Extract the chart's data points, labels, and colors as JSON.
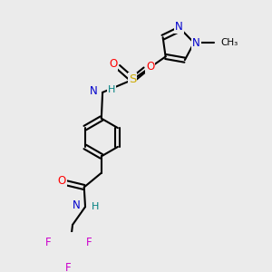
{
  "bg_color": "#ebebeb",
  "atom_colors": {
    "C": "#000000",
    "N": "#0000cc",
    "O": "#ff0000",
    "S": "#ccaa00",
    "F": "#cc00cc",
    "H": "#008080"
  }
}
